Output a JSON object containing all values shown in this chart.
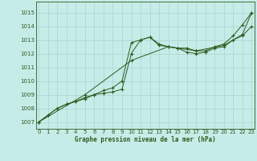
{
  "title": "Graphe pression niveau de la mer (hPa)",
  "background_color": "#c6ece8",
  "grid_color": "#a8d4d0",
  "line_color": "#2d5a1e",
  "x_ticks": [
    0,
    1,
    2,
    3,
    4,
    5,
    6,
    7,
    8,
    9,
    10,
    11,
    12,
    13,
    14,
    15,
    16,
    17,
    18,
    19,
    20,
    21,
    22,
    23
  ],
  "y_ticks": [
    1007,
    1008,
    1009,
    1010,
    1011,
    1012,
    1013,
    1014,
    1015
  ],
  "ylim": [
    1006.5,
    1015.8
  ],
  "xlim": [
    -0.3,
    23.3
  ],
  "series1_x": [
    0,
    1,
    2,
    3,
    4,
    5,
    6,
    7,
    8,
    9,
    10,
    11,
    12,
    13,
    14,
    15,
    16,
    17,
    18,
    19,
    20,
    21,
    22,
    23
  ],
  "series1": [
    1007.0,
    1007.5,
    1008.0,
    1008.3,
    1008.5,
    1008.8,
    1009.0,
    1009.3,
    1009.5,
    1010.0,
    1012.8,
    1013.0,
    1013.2,
    1012.7,
    1012.5,
    1012.4,
    1012.4,
    1012.2,
    1012.2,
    1012.5,
    1012.7,
    1013.3,
    1014.1,
    1015.0
  ],
  "series2_x": [
    0,
    1,
    2,
    3,
    4,
    5,
    6,
    7,
    8,
    9,
    10,
    11,
    12,
    13,
    14,
    15,
    16,
    17,
    18,
    19,
    20,
    21,
    22,
    23
  ],
  "series2": [
    1007.0,
    1007.5,
    1008.0,
    1008.3,
    1008.5,
    1008.7,
    1009.0,
    1009.1,
    1009.2,
    1009.4,
    1012.0,
    1013.0,
    1013.2,
    1012.6,
    1012.5,
    1012.4,
    1012.1,
    1012.0,
    1012.1,
    1012.4,
    1012.5,
    1013.0,
    1013.3,
    1014.0
  ],
  "series3_x": [
    0,
    5,
    10,
    14,
    17,
    20,
    22,
    23
  ],
  "series3": [
    1007.0,
    1009.0,
    1011.5,
    1012.5,
    1012.2,
    1012.6,
    1013.4,
    1015.0
  ]
}
